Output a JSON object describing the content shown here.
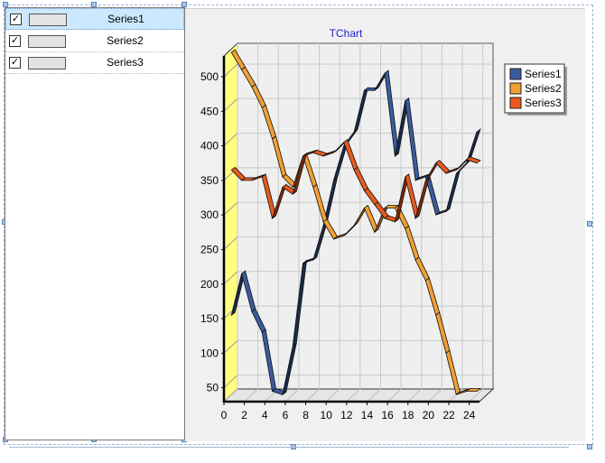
{
  "series_list": {
    "items": [
      {
        "label": "Series1",
        "checked": true,
        "selected": true
      },
      {
        "label": "Series2",
        "checked": true,
        "selected": false
      },
      {
        "label": "Series3",
        "checked": true,
        "selected": false
      }
    ],
    "check_glyph": "✓"
  },
  "chart_data": {
    "type": "line",
    "title": "TChart",
    "title_color": "#1f1fd0",
    "view3d": true,
    "grid": true,
    "legend_position": "top-right",
    "xlim": [
      0,
      25
    ],
    "ylim": [
      30,
      530
    ],
    "x_ticks": [
      0,
      2,
      4,
      6,
      8,
      10,
      12,
      14,
      16,
      18,
      20,
      22,
      24
    ],
    "y_ticks": [
      50,
      100,
      150,
      200,
      250,
      300,
      350,
      400,
      450,
      500
    ],
    "x": [
      0,
      1,
      2,
      3,
      4,
      5,
      6,
      7,
      8,
      9,
      10,
      11,
      12,
      13,
      14,
      15,
      16,
      17,
      18,
      19,
      20,
      21,
      22,
      23,
      24
    ],
    "series": [
      {
        "name": "Series1",
        "color": "#3a5ba0",
        "dark": "#1a2a4a",
        "values": [
          145,
          205,
          150,
          120,
          35,
          30,
          100,
          220,
          225,
          275,
          340,
          390,
          410,
          470,
          470,
          495,
          375,
          455,
          340,
          345,
          290,
          295,
          350,
          365,
          410
        ]
      },
      {
        "name": "Series2",
        "color": "#f2a033",
        "dark": "#8a5a15",
        "values": [
          525,
          500,
          475,
          445,
          400,
          345,
          330,
          375,
          330,
          280,
          255,
          260,
          275,
          300,
          265,
          300,
          300,
          270,
          225,
          195,
          145,
          90,
          30,
          35,
          35
        ]
      },
      {
        "name": "Series3",
        "color": "#e85a1e",
        "dark": "#7a2a0a",
        "values": [
          355,
          340,
          340,
          345,
          285,
          330,
          320,
          375,
          380,
          375,
          380,
          395,
          355,
          325,
          305,
          285,
          280,
          345,
          285,
          340,
          365,
          350,
          355,
          370,
          365
        ]
      }
    ]
  }
}
